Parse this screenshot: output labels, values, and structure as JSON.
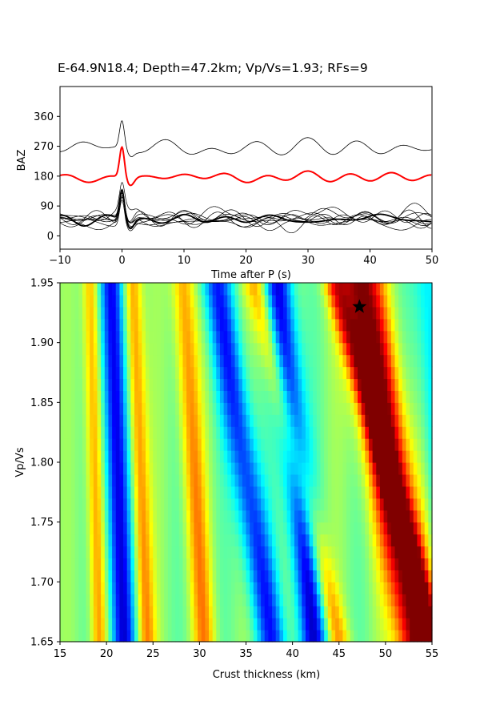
{
  "title": "E-64.9N18.4; Depth=47.2km; Vp/Vs=1.93; RFs=9",
  "chart_data": [
    {
      "type": "line",
      "name": "receiver-functions",
      "xlabel": "Time after P (s)",
      "ylabel": "BAZ",
      "xlim": [
        -10,
        50
      ],
      "ylim": [
        -40,
        450
      ],
      "xticks": [
        "−10",
        "0",
        "10",
        "20",
        "30",
        "40",
        "50"
      ],
      "xtick_values": [
        -10,
        0,
        10,
        20,
        30,
        40,
        50
      ],
      "yticks": [
        "0",
        "90",
        "180",
        "270",
        "360"
      ],
      "ytick_values": [
        0,
        90,
        180,
        270,
        360
      ],
      "grid": false,
      "series": [
        {
          "baz": 265,
          "color": "#000000",
          "width": 0.8,
          "peak": 80,
          "noise": 22,
          "seed": 11
        },
        {
          "baz": 177,
          "color": "#ff0000",
          "width": 2.0,
          "peak": 92,
          "noise": 13,
          "seed": 5
        },
        {
          "baz": 62,
          "color": "#000000",
          "width": 0.7,
          "peak": 70,
          "noise": 20,
          "seed": 21
        },
        {
          "baz": 58,
          "color": "#000000",
          "width": 0.7,
          "peak": 82,
          "noise": 19,
          "seed": 22
        },
        {
          "baz": 55,
          "color": "#000000",
          "width": 0.7,
          "peak": 76,
          "noise": 21,
          "seed": 23
        },
        {
          "baz": 52,
          "color": "#000000",
          "width": 0.7,
          "peak": 88,
          "noise": 18,
          "seed": 24
        },
        {
          "baz": 50,
          "color": "#000000",
          "width": 0.7,
          "peak": 72,
          "noise": 22,
          "seed": 25
        },
        {
          "baz": 47,
          "color": "#000000",
          "width": 0.7,
          "peak": 84,
          "noise": 20,
          "seed": 26
        },
        {
          "baz": 44,
          "color": "#000000",
          "width": 0.7,
          "peak": 78,
          "noise": 19,
          "seed": 27
        },
        {
          "baz": 40,
          "color": "#000000",
          "width": 0.7,
          "peak": 80,
          "noise": 21,
          "seed": 28
        },
        {
          "baz": 50,
          "color": "#000000",
          "width": 1.8,
          "peak": 92,
          "noise": 12,
          "seed": 3
        }
      ]
    },
    {
      "type": "heatmap",
      "name": "h-kappa-stack",
      "xlabel": "Crust thickness (km)",
      "ylabel": "Vp/Vs",
      "xlim": [
        15,
        55
      ],
      "ylim": [
        1.65,
        1.95
      ],
      "xticks": [
        "15",
        "20",
        "25",
        "30",
        "35",
        "40",
        "45",
        "50",
        "55"
      ],
      "xtick_values": [
        15,
        20,
        25,
        30,
        35,
        40,
        45,
        50,
        55
      ],
      "yticks": [
        "1.65",
        "1.70",
        "1.75",
        "1.80",
        "1.85",
        "1.90",
        "1.95"
      ],
      "ytick_values": [
        1.65,
        1.7,
        1.75,
        1.8,
        1.85,
        1.9,
        1.95
      ],
      "colormap": "jet",
      "columns": 100,
      "rows": 30,
      "features": [
        {
          "h_top": 20.5,
          "h_bottom": 21.8,
          "width": 1.3,
          "amp": -1.0
        },
        {
          "h_top": 18.3,
          "h_bottom": 19.2,
          "width": 0.9,
          "amp": 0.55
        },
        {
          "h_top": 22.8,
          "h_bottom": 24.3,
          "width": 1.0,
          "amp": 0.6
        },
        {
          "h_top": 28.2,
          "h_bottom": 30.5,
          "width": 1.2,
          "amp": 0.55
        },
        {
          "h_top": 31.8,
          "h_bottom": 37.8,
          "width": 1.6,
          "amp": -0.8
        },
        {
          "h_top": 38.5,
          "h_bottom": 42.3,
          "width": 1.5,
          "amp": -0.95
        },
        {
          "h_top": 36.0,
          "h_bottom": 45.0,
          "width": 1.2,
          "amp": 0.5
        },
        {
          "h_top": 47.3,
          "h_bottom": 53.5,
          "width": 2.3,
          "amp": 1.3
        },
        {
          "h_top": 44.5,
          "h_bottom": 55.5,
          "width": 1.2,
          "amp": 0.6
        },
        {
          "h_top": 54.5,
          "h_bottom": 57.0,
          "width": 1.5,
          "amp": -0.4
        }
      ],
      "marker": {
        "h": 47.2,
        "vpvs": 1.93,
        "symbol": "star",
        "color": "#000000"
      }
    }
  ]
}
